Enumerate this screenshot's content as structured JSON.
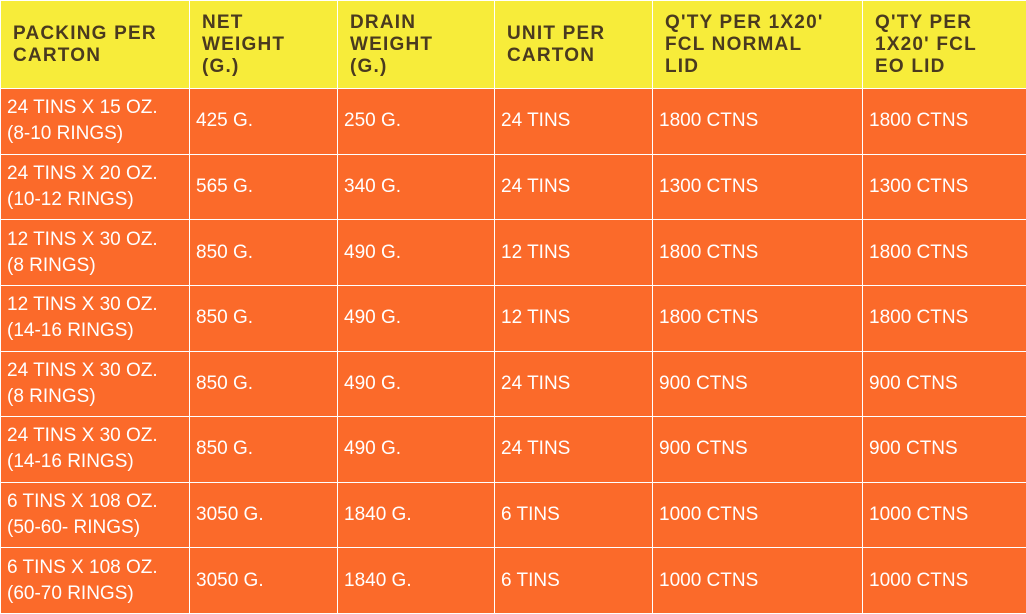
{
  "colors": {
    "header_bg": "#f7ec3a",
    "header_text": "#4a3a1f",
    "cell_bg": "#fb6a2a",
    "cell_text": "#ffffff",
    "grid": "#ffffff"
  },
  "headers": [
    "PACKING PER\nCARTON",
    "NET\nWEIGHT\n(G.)",
    "DRAIN\nWEIGHT\n(G.)",
    "UNIT PER\nCARTON",
    "Q'TY PER 1X20'\nFCL NORMAL\nLID",
    "Q'TY PER\n1X20' FCL\nEO LID"
  ],
  "rows": [
    [
      "24 TINS X 15 OZ.\n(8-10 RINGS)",
      "425 G.",
      "250 G.",
      "24 TINS",
      "1800 CTNS",
      "1800 CTNS"
    ],
    [
      "24 TINS X 20 OZ.\n(10-12 RINGS)",
      "565 G.",
      "340 G.",
      "24 TINS",
      "1300 CTNS",
      "1300 CTNS"
    ],
    [
      "12 TINS X 30 OZ.\n(8 RINGS)",
      "850 G.",
      "490 G.",
      "12 TINS",
      "1800 CTNS",
      "1800 CTNS"
    ],
    [
      "12 TINS X 30 OZ.\n(14-16 RINGS)",
      "850 G.",
      "490 G.",
      "12 TINS",
      "1800 CTNS",
      "1800 CTNS"
    ],
    [
      "24 TINS X 30 OZ.\n(8 RINGS)",
      "850 G.",
      "490 G.",
      "24 TINS",
      "900 CTNS",
      "900 CTNS"
    ],
    [
      "24 TINS X 30 OZ.\n(14-16 RINGS)",
      "850 G.",
      "490 G.",
      "24 TINS",
      "900 CTNS",
      "900 CTNS"
    ],
    [
      "6 TINS X 108 OZ.\n(50-60- RINGS)",
      "3050 G.",
      "1840 G.",
      "6 TINS",
      "1000 CTNS",
      "1000 CTNS"
    ],
    [
      "6 TINS X 108 OZ.\n(60-70 RINGS)",
      "3050 G.",
      "1840 G.",
      "6 TINS",
      "1000 CTNS",
      "1000 CTNS"
    ]
  ]
}
